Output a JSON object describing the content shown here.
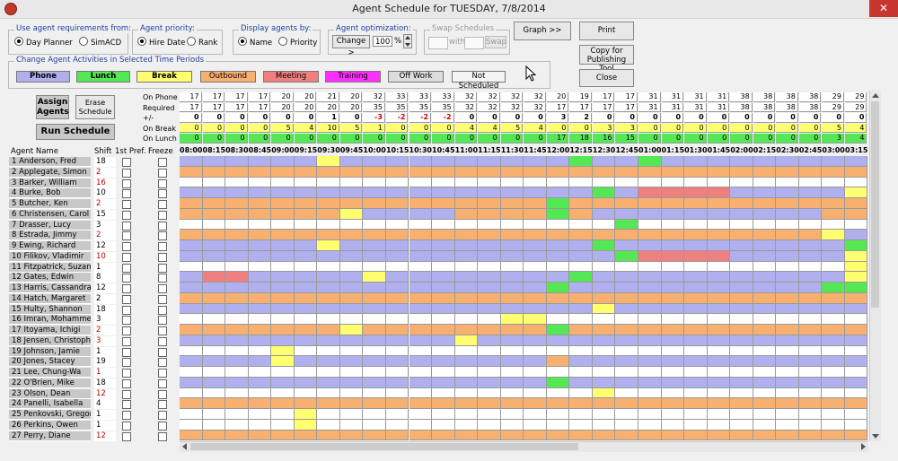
{
  "window": {
    "title": "Agent Schedule for TUESDAY,  7/8/2014",
    "close_glyph": "✕"
  },
  "requirements_group": {
    "label": "Use agent requirements from:",
    "options": [
      "Day Planner",
      "SimACD"
    ],
    "selected": 0
  },
  "priority_group": {
    "label": "Agent priority:",
    "options": [
      "Hire Date",
      "Rank"
    ],
    "selected": 0
  },
  "display_group": {
    "label": "Display agents by:",
    "options": [
      "Name",
      "Priority"
    ],
    "selected": 0
  },
  "optimization_group": {
    "label": "Agent optimization:",
    "change_label": "Change >",
    "value": "100",
    "unit": "%"
  },
  "swap_group": {
    "label": "Swap Schedules",
    "with_label": "with",
    "swap_label": "Swap"
  },
  "buttons": {
    "graph": "Graph >>",
    "print": "Print",
    "copy_publishing": [
      "Copy for",
      "Publishing Tool"
    ],
    "close": "Close",
    "assign_agents": [
      "Assign",
      "Agents"
    ],
    "erase_schedule": [
      "Erase",
      "Schedule"
    ],
    "run_schedule": "Run Schedule"
  },
  "activities_group": {
    "label": "Change Agent Activities in Selected Time Periods",
    "items": [
      {
        "label": "Phone",
        "color": "#b0b0ee",
        "bold": true
      },
      {
        "label": "Lunch",
        "color": "#55e855",
        "bold": true
      },
      {
        "label": "Break",
        "color": "#ffff70",
        "bold": true
      },
      {
        "label": "Outbound",
        "color": "#f8b070",
        "bold": false
      },
      {
        "label": "Meeting",
        "color": "#f08080",
        "bold": false
      },
      {
        "label": "Training",
        "color": "#ff30ff",
        "bold": false
      },
      {
        "label": "Off Work",
        "color": "#dcdcdc",
        "bold": false
      },
      {
        "label": "Not Scheduled",
        "color": "#f4f4f4",
        "bold": false
      }
    ]
  },
  "stats_labels": [
    "On Phone",
    "Required",
    "+/-",
    "On Break",
    "On Lunch"
  ],
  "stats": {
    "on_phone": [
      "17",
      "17",
      "17",
      "17",
      "20",
      "20",
      "21",
      "20",
      "32",
      "33",
      "33",
      "33",
      "32",
      "32",
      "32",
      "32",
      "20",
      "19",
      "17",
      "17",
      "31",
      "31",
      "31",
      "31",
      "38",
      "38",
      "38",
      "38",
      "29",
      "29"
    ],
    "required": [
      "17",
      "17",
      "17",
      "17",
      "20",
      "20",
      "20",
      "20",
      "35",
      "35",
      "35",
      "35",
      "32",
      "32",
      "32",
      "32",
      "17",
      "17",
      "17",
      "17",
      "31",
      "31",
      "31",
      "31",
      "38",
      "38",
      "38",
      "38",
      "29",
      "29"
    ],
    "plusminus": [
      "0",
      "0",
      "0",
      "0",
      "0",
      "0",
      "1",
      "0",
      "-3",
      "-2",
      "-2",
      "-2",
      "0",
      "0",
      "0",
      "0",
      "3",
      "2",
      "0",
      "0",
      "0",
      "0",
      "0",
      "0",
      "0",
      "0",
      "0",
      "0",
      "0",
      "0"
    ],
    "on_break": [
      "0",
      "0",
      "0",
      "0",
      "5",
      "4",
      "10",
      "5",
      "1",
      "0",
      "0",
      "0",
      "4",
      "4",
      "5",
      "4",
      "0",
      "0",
      "3",
      "3",
      "0",
      "0",
      "0",
      "0",
      "0",
      "0",
      "0",
      "0",
      "5",
      "4"
    ],
    "on_lunch": [
      "0",
      "0",
      "0",
      "0",
      "0",
      "0",
      "0",
      "0",
      "0",
      "0",
      "0",
      "0",
      "0",
      "0",
      "0",
      "0",
      "17",
      "18",
      "16",
      "15",
      "0",
      "0",
      "0",
      "0",
      "0",
      "0",
      "0",
      "0",
      "3",
      "4"
    ]
  },
  "times": [
    "08:00",
    "08:15",
    "08:30",
    "08:45",
    "09:00",
    "09:15",
    "09:30",
    "09:45",
    "10:00",
    "10:15",
    "10:30",
    "10:45",
    "11:00",
    "11:15",
    "11:30",
    "11:45",
    "12:00",
    "12:15",
    "12:30",
    "12:45",
    "01:00",
    "01:15",
    "01:30",
    "01:45",
    "02:00",
    "02:15",
    "02:30",
    "02:45",
    "03:00",
    "03:15"
  ],
  "column_headers": {
    "agent_name": "Agent Name",
    "shift": "Shift",
    "first_pref": "1st Pref.",
    "freeze": "Freeze"
  },
  "agents": [
    {
      "name": "1  Anderson, Fred",
      "shift": "18",
      "red": false
    },
    {
      "name": "2  Applegate, Simon",
      "shift": "2",
      "red": true
    },
    {
      "name": "3  Barker, William",
      "shift": "16",
      "red": true
    },
    {
      "name": "4  Burke, Bob",
      "shift": "10",
      "red": false
    },
    {
      "name": "5  Butcher, Ken",
      "shift": "2",
      "red": true
    },
    {
      "name": "6  Christensen, Carol",
      "shift": "15",
      "red": false
    },
    {
      "name": "7  Drasser, Lucy",
      "shift": "3",
      "red": false
    },
    {
      "name": "8  Estrada, Jimmy",
      "shift": "2",
      "red": true
    },
    {
      "name": "9  Ewing, Richard",
      "shift": "12",
      "red": false
    },
    {
      "name": "10  Filikov, Vladimir",
      "shift": "10",
      "red": true
    },
    {
      "name": "11  Fitzpatrick, Suzan",
      "shift": "1",
      "red": false
    },
    {
      "name": "12  Gates, Edwin",
      "shift": "8",
      "red": false
    },
    {
      "name": "13  Harris, Cassandra",
      "shift": "12",
      "red": false
    },
    {
      "name": "14  Hatch, Margaret",
      "shift": "2",
      "red": false
    },
    {
      "name": "15  Hulty, Shannon",
      "shift": "18",
      "red": false
    },
    {
      "name": "16  Imran, Mohammed",
      "shift": "3",
      "red": false
    },
    {
      "name": "17  Itoyama, Ichigi",
      "shift": "2",
      "red": true
    },
    {
      "name": "18  Jensen, Christophe",
      "shift": "3",
      "red": true
    },
    {
      "name": "19  Johnson, Jamie",
      "shift": "1",
      "red": false
    },
    {
      "name": "20  Jones, Stacey",
      "shift": "19",
      "red": false
    },
    {
      "name": "21  Lee, Chung-Wa",
      "shift": "1",
      "red": true
    },
    {
      "name": "22  O'Brien, Mike",
      "shift": "18",
      "red": false
    },
    {
      "name": "23  Olson, Dean",
      "shift": "12",
      "red": true
    },
    {
      "name": "24  Panelli, Isabella",
      "shift": "4",
      "red": false
    },
    {
      "name": "25  Penkovski, Gregory",
      "shift": "1",
      "red": false
    },
    {
      "name": "26  Perkins, Owen",
      "shift": "1",
      "red": false
    },
    {
      "name": "27  Perry, Diane",
      "shift": "12",
      "red": true
    }
  ],
  "schedule": [
    "PPPPPPBPPPPPPPPPPLPPLPPPPPPPPP",
    "OOOOOOOOOOOOOOOOOOOOOOOOOOOOOO",
    "NNNNNNNNNNNNNNNNNNNNNNNNNNNNNN",
    "PPPPPPPPPPPPPPPPPPLPMMMMPPPPPB",
    "OOOOOOOOOOOOOOOOLOOOOOOOOOOOOO",
    "OOOOOOOBPPPPOOOOLOPPPPPPPPPPOO",
    "NNNNNNNNNNNNNNNNNNNLNNNNNNNNNN",
    "OOOOOOOOOOOOOOOOOOOOOOOOOOOOBP",
    "PPPPPPBPPPPPPPPPPPLPPPPPPPPPPL",
    "PPPPPPPPPPPPPPPPPPPLMMMMPPPPPB",
    "NNNNNNNNNNNNNNNNNNNNNNNNNNNNNB",
    "PMMPPPPPBPPPPPPPPLPPPPPPPPPPPB",
    "PPPPPPPPPPPPPPPPLPPPPPPPPPPPLL",
    "OOOOOOOOOOOOOOOOOOOOOOOOOOOOOO",
    "PPPPPPPPPPPPPPPPPPBPPPPPPPPPPP",
    "NNNNNNNNNNNNNNBBNNNNNNNNNNNNNN",
    "OOOOOOOBOOOOOOOOLOOOOOOOOOOOOO",
    "PPPPPPPPPPPPBPPPPPPPPPPPPPPPPP",
    "NNNNBNNNNNNNNNNNNNNNNNNNNNNNNN",
    "PPPPBPPPPPPPPPPPOPPPPPPPPPPPPP",
    "NNNNNNNNNNNNNNNNNNNNNNNNNNNNNN",
    "PPPPPPPPPPPPPPPPLPPPPPPPPPPPPP",
    "NNNNNNNNNNNNNNNNNNBNNNNNNNNNNN",
    "OOOOOOOOOOOOOOOOOOOOOOOOOOOOOO",
    "NNNNNBNNNNNNNNNNNNNNNNNNNNNNNN",
    "NNNNNBNNNNNNNNNNNNNNNNNNNNNNNN",
    "OOOOOOOOOOOOOOOOOOOOOOOOOOOOOO"
  ],
  "colors": {
    "P": "#b0b0ee",
    "L": "#55e855",
    "B": "#ffff70",
    "O": "#f8b070",
    "M": "#f08080",
    "N": "#ffffff"
  }
}
